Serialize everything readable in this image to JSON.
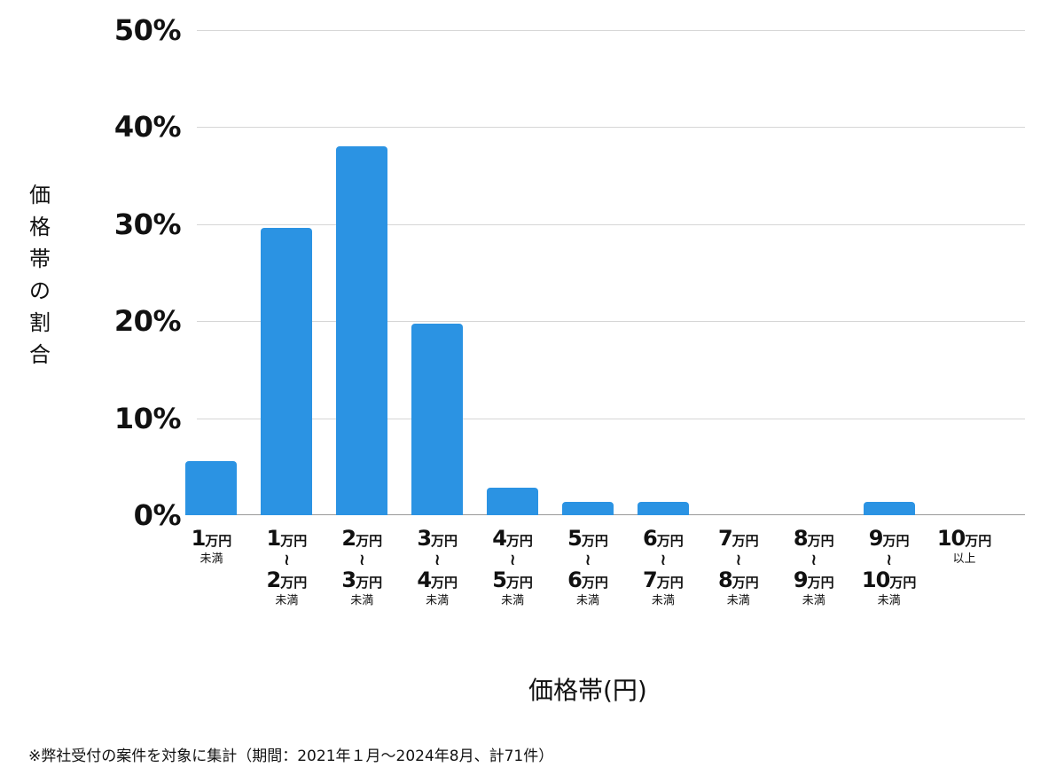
{
  "chart_data": {
    "type": "bar",
    "title": "",
    "xlabel": "価格帯(円)",
    "ylabel": "価格帯の割合",
    "ylim": [
      0,
      50
    ],
    "yticks": [
      "0%",
      "10%",
      "20%",
      "30%",
      "40%",
      "50%"
    ],
    "grid": true,
    "legend": null,
    "bar_color": "#2b93e3",
    "categories": [
      "1万円未満",
      "1万円〜2万円未満",
      "2万円〜3万円未満",
      "3万円〜4万円未満",
      "4万円〜5万円未満",
      "5万円〜6万円未満",
      "6万円〜7万円未満",
      "7万円〜8万円未満",
      "8万円〜9万円未満",
      "9万円〜10万円未満",
      "10万円以上"
    ],
    "values": [
      5.6,
      29.6,
      38.0,
      19.7,
      2.8,
      1.4,
      1.4,
      0,
      0,
      1.4,
      0
    ],
    "note": "※弊社受付の案件を対象に集計（期間：2021年１月〜2024年8月、計71件）"
  },
  "ui": {
    "ylabel_chars": [
      "価",
      "格",
      "帯",
      "の",
      "割",
      "合"
    ],
    "ticks": [
      {
        "from": "1",
        "to": null,
        "suffix": "未満"
      },
      {
        "from": "1",
        "to": "2",
        "suffix": "未満"
      },
      {
        "from": "2",
        "to": "3",
        "suffix": "未満"
      },
      {
        "from": "3",
        "to": "4",
        "suffix": "未満"
      },
      {
        "from": "4",
        "to": "5",
        "suffix": "未満"
      },
      {
        "from": "5",
        "to": "6",
        "suffix": "未満"
      },
      {
        "from": "6",
        "to": "7",
        "suffix": "未満"
      },
      {
        "from": "7",
        "to": "8",
        "suffix": "未満"
      },
      {
        "from": "8",
        "to": "9",
        "suffix": "未満"
      },
      {
        "from": "9",
        "to": "10",
        "suffix": "未満"
      },
      {
        "from": "10",
        "to": null,
        "suffix": "以上"
      }
    ],
    "unit": "万円",
    "wave": "≀"
  }
}
